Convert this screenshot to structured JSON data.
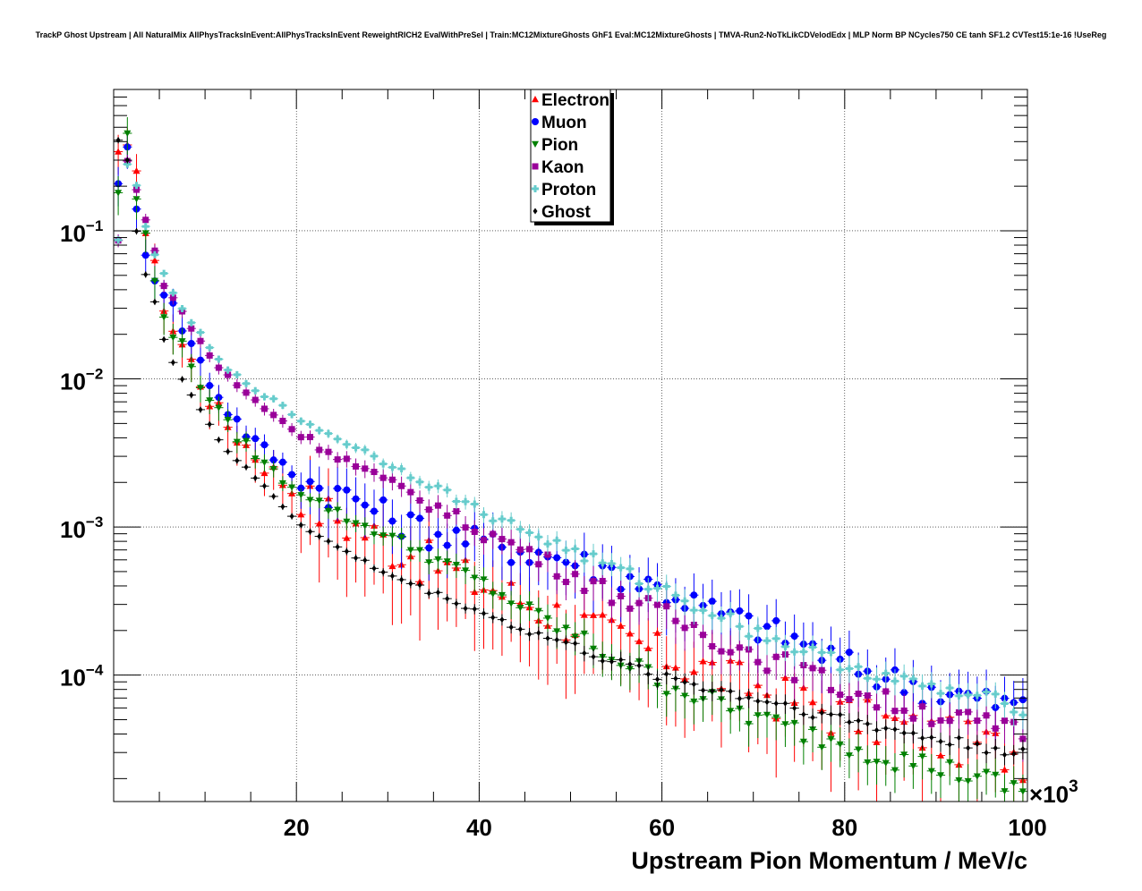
{
  "title": "TrackP Ghost Upstream | All NaturalMix AllPhysTracksInEvent:AllPhysTracksInEvent ReweightRICH2 EvalWithPreSel | Train:MC12MixtureGhosts GhF1 Eval:MC12MixtureGhosts | TMVA-Run2-NoTkLikCDVelodEdx | MLP Norm BP NCycles750 CE tanh SF1.2 CVTest15:1e-16 !UseReg",
  "chart_data": {
    "type": "scatter",
    "title": "TrackP Ghost Upstream | All NaturalMix AllPhysTracksInEvent:AllPhysTracksInEvent ReweightRICH2 EvalWithPreSel | Train:MC12MixtureGhosts GhF1 Eval:MC12MixtureGhosts | TMVA-Run2-NoTkLikCDVelodEdx | MLP Norm BP NCycles750 CE tanh SF1.2 CVTest15:1e-16 !UseReg",
    "xlabel": "Upstream Pion Momentum / MeV/c",
    "ylabel": "",
    "x_multiplier_label": "×10^3",
    "xlim": [
      0,
      100
    ],
    "ylim": [
      1.4e-05,
      0.9
    ],
    "yscale": "log",
    "grid": true,
    "legend_position": "top-center",
    "x_ticks": [
      {
        "value": 20,
        "label": "20"
      },
      {
        "value": 40,
        "label": "40"
      },
      {
        "value": 60,
        "label": "60"
      },
      {
        "value": 80,
        "label": "80"
      },
      {
        "value": 100,
        "label": "100"
      }
    ],
    "y_ticks": [
      {
        "value": 0.1,
        "base": "10",
        "exp": "−1"
      },
      {
        "value": 0.01,
        "base": "10",
        "exp": "−2"
      },
      {
        "value": 0.001,
        "base": "10",
        "exp": "−3"
      },
      {
        "value": 0.0001,
        "base": "10",
        "exp": "−4"
      }
    ],
    "bin_width": 1,
    "series": [
      {
        "name": "Electron",
        "color": "#ff0000",
        "marker": "triangle-up",
        "anchors": [
          [
            0.5,
            0.3
          ],
          [
            1.5,
            0.33
          ],
          [
            2.5,
            0.3
          ],
          [
            3.5,
            0.1
          ],
          [
            4.5,
            0.055
          ],
          [
            5.5,
            0.033
          ],
          [
            6.5,
            0.022
          ],
          [
            8,
            0.015
          ],
          [
            10,
            0.0085
          ],
          [
            12,
            0.0053
          ],
          [
            15,
            0.0033
          ],
          [
            18,
            0.0022
          ],
          [
            20,
            0.0017
          ],
          [
            23,
            0.0013
          ],
          [
            26,
            0.00105
          ],
          [
            30,
            0.0008
          ],
          [
            35,
            0.00058
          ],
          [
            40,
            0.00042
          ],
          [
            45,
            0.00032
          ],
          [
            50,
            0.00024
          ],
          [
            55,
            0.00018
          ],
          [
            60,
            0.00014
          ],
          [
            65,
            0.00011
          ],
          [
            70,
            8.5e-05
          ],
          [
            75,
            6.8e-05
          ],
          [
            80,
            5.5e-05
          ],
          [
            85,
            4.7e-05
          ],
          [
            90,
            4e-05
          ],
          [
            95,
            3.5e-05
          ],
          [
            100,
            3e-05
          ]
        ],
        "errors": [
          [
            0,
            0.3
          ],
          [
            20,
            0.3
          ],
          [
            21,
            0.6
          ]
        ]
      },
      {
        "name": "Muon",
        "color": "#0000ff",
        "marker": "circle",
        "anchors": [
          [
            0.5,
            0.24
          ],
          [
            1.5,
            0.33
          ],
          [
            2.5,
            0.13
          ],
          [
            3.5,
            0.08
          ],
          [
            4.5,
            0.05
          ],
          [
            5.5,
            0.042
          ],
          [
            6.5,
            0.03
          ],
          [
            8,
            0.02
          ],
          [
            10,
            0.011
          ],
          [
            12,
            0.0068
          ],
          [
            15,
            0.004
          ],
          [
            18,
            0.0028
          ],
          [
            20,
            0.0022
          ],
          [
            23,
            0.0018
          ],
          [
            26,
            0.0016
          ],
          [
            30,
            0.0012
          ],
          [
            35,
            0.00092
          ],
          [
            40,
            0.0008
          ],
          [
            45,
            0.0007
          ],
          [
            50,
            0.0006
          ],
          [
            55,
            0.0005
          ],
          [
            60,
            0.00038
          ],
          [
            65,
            0.00028
          ],
          [
            70,
            0.00022
          ],
          [
            75,
            0.00017
          ],
          [
            80,
            0.00012
          ],
          [
            85,
            9.5e-05
          ],
          [
            90,
            8e-05
          ],
          [
            95,
            6.8e-05
          ],
          [
            100,
            6e-05
          ]
        ],
        "errors": [
          [
            0,
            0.3
          ],
          [
            20,
            0.15
          ],
          [
            21,
            0.4
          ]
        ]
      },
      {
        "name": "Pion",
        "color": "#008000",
        "marker": "triangle-down",
        "anchors": [
          [
            0.5,
            0.19
          ],
          [
            1.5,
            0.42
          ],
          [
            2.5,
            0.17
          ],
          [
            3.5,
            0.09
          ],
          [
            4.5,
            0.045
          ],
          [
            5.5,
            0.03
          ],
          [
            6.5,
            0.021
          ],
          [
            8,
            0.014
          ],
          [
            10,
            0.0085
          ],
          [
            12,
            0.0052
          ],
          [
            15,
            0.0033
          ],
          [
            18,
            0.0022
          ],
          [
            20,
            0.0018
          ],
          [
            23,
            0.0014
          ],
          [
            26,
            0.0011
          ],
          [
            30,
            0.00088
          ],
          [
            35,
            0.00062
          ],
          [
            40,
            0.00043
          ],
          [
            45,
            0.00028
          ],
          [
            50,
            0.00019
          ],
          [
            55,
            0.00013
          ],
          [
            60,
            9.2e-05
          ],
          [
            65,
            6.8e-05
          ],
          [
            70,
            5.2e-05
          ],
          [
            75,
            4.2e-05
          ],
          [
            80,
            3.5e-05
          ],
          [
            85,
            2.8e-05
          ],
          [
            90,
            2.4e-05
          ],
          [
            95,
            2e-05
          ],
          [
            100,
            1.6e-05
          ]
        ],
        "errors": [
          [
            0,
            0.3
          ],
          [
            20,
            0.1
          ],
          [
            40,
            0.2
          ],
          [
            60,
            0.3
          ]
        ]
      },
      {
        "name": "Kaon",
        "color": "#990099",
        "marker": "square",
        "anchors": [
          [
            0.5,
            0.085
          ],
          [
            1.5,
            0.29
          ],
          [
            2.5,
            0.2
          ],
          [
            3.5,
            0.12
          ],
          [
            4.5,
            0.07
          ],
          [
            5.5,
            0.045
          ],
          [
            6.5,
            0.035
          ],
          [
            8,
            0.025
          ],
          [
            10,
            0.016
          ],
          [
            12,
            0.011
          ],
          [
            15,
            0.0075
          ],
          [
            18,
            0.0055
          ],
          [
            20,
            0.0044
          ],
          [
            23,
            0.0034
          ],
          [
            26,
            0.0027
          ],
          [
            30,
            0.002
          ],
          [
            35,
            0.0014
          ],
          [
            40,
            0.00095
          ],
          [
            45,
            0.0007
          ],
          [
            50,
            0.00048
          ],
          [
            55,
            0.00035
          ],
          [
            60,
            0.00026
          ],
          [
            65,
            0.00019
          ],
          [
            70,
            0.00014
          ],
          [
            75,
            0.00011
          ],
          [
            80,
            8e-05
          ],
          [
            85,
            6.5e-05
          ],
          [
            90,
            5.5e-05
          ],
          [
            95,
            4.7e-05
          ],
          [
            100,
            4e-05
          ]
        ],
        "errors": [
          [
            0,
            0.1
          ],
          [
            20,
            0.1
          ],
          [
            40,
            0.2
          ],
          [
            60,
            0.3
          ]
        ]
      },
      {
        "name": "Proton",
        "color": "#66cccc",
        "marker": "cross",
        "anchors": [
          [
            0.5,
            0.085
          ],
          [
            1.5,
            0.28
          ],
          [
            2.5,
            0.2
          ],
          [
            3.5,
            0.11
          ],
          [
            4.5,
            0.07
          ],
          [
            5.5,
            0.05
          ],
          [
            6.5,
            0.037
          ],
          [
            8,
            0.027
          ],
          [
            10,
            0.018
          ],
          [
            12,
            0.012
          ],
          [
            15,
            0.009
          ],
          [
            18,
            0.0068
          ],
          [
            20,
            0.0055
          ],
          [
            23,
            0.0044
          ],
          [
            26,
            0.0036
          ],
          [
            30,
            0.0027
          ],
          [
            35,
            0.0019
          ],
          [
            40,
            0.0013
          ],
          [
            45,
            0.00095
          ],
          [
            50,
            0.0007
          ],
          [
            55,
            0.00052
          ],
          [
            60,
            0.00038
          ],
          [
            65,
            0.00028
          ],
          [
            70,
            0.0002
          ],
          [
            75,
            0.00015
          ],
          [
            80,
            0.00012
          ],
          [
            85,
            9.5e-05
          ],
          [
            90,
            8e-05
          ],
          [
            95,
            7e-05
          ],
          [
            100,
            6e-05
          ]
        ],
        "errors": [
          [
            0,
            0.05
          ],
          [
            20,
            0.06
          ],
          [
            40,
            0.12
          ],
          [
            60,
            0.2
          ]
        ]
      },
      {
        "name": "Ghost",
        "color": "#000000",
        "marker": "diamond",
        "anchors": [
          [
            0.5,
            0.42
          ],
          [
            1.5,
            0.3
          ],
          [
            2.5,
            0.1
          ],
          [
            3.5,
            0.05
          ],
          [
            4.5,
            0.033
          ],
          [
            5.5,
            0.018
          ],
          [
            6.5,
            0.013
          ],
          [
            8,
            0.009
          ],
          [
            10,
            0.0055
          ],
          [
            12,
            0.0035
          ],
          [
            15,
            0.0023
          ],
          [
            18,
            0.0015
          ],
          [
            20,
            0.0011
          ],
          [
            23,
            0.00082
          ],
          [
            26,
            0.00065
          ],
          [
            30,
            0.00048
          ],
          [
            35,
            0.00036
          ],
          [
            40,
            0.00027
          ],
          [
            45,
            0.0002
          ],
          [
            50,
            0.00016
          ],
          [
            55,
            0.00012
          ],
          [
            60,
            0.0001
          ],
          [
            65,
            8.2e-05
          ],
          [
            70,
            7e-05
          ],
          [
            75,
            6e-05
          ],
          [
            80,
            5e-05
          ],
          [
            85,
            4.3e-05
          ],
          [
            90,
            3.7e-05
          ],
          [
            95,
            3.3e-05
          ],
          [
            100,
            3e-05
          ]
        ],
        "errors": [
          [
            0,
            0.05
          ],
          [
            20,
            0.05
          ],
          [
            40,
            0.08
          ],
          [
            60,
            0.15
          ]
        ]
      }
    ]
  }
}
